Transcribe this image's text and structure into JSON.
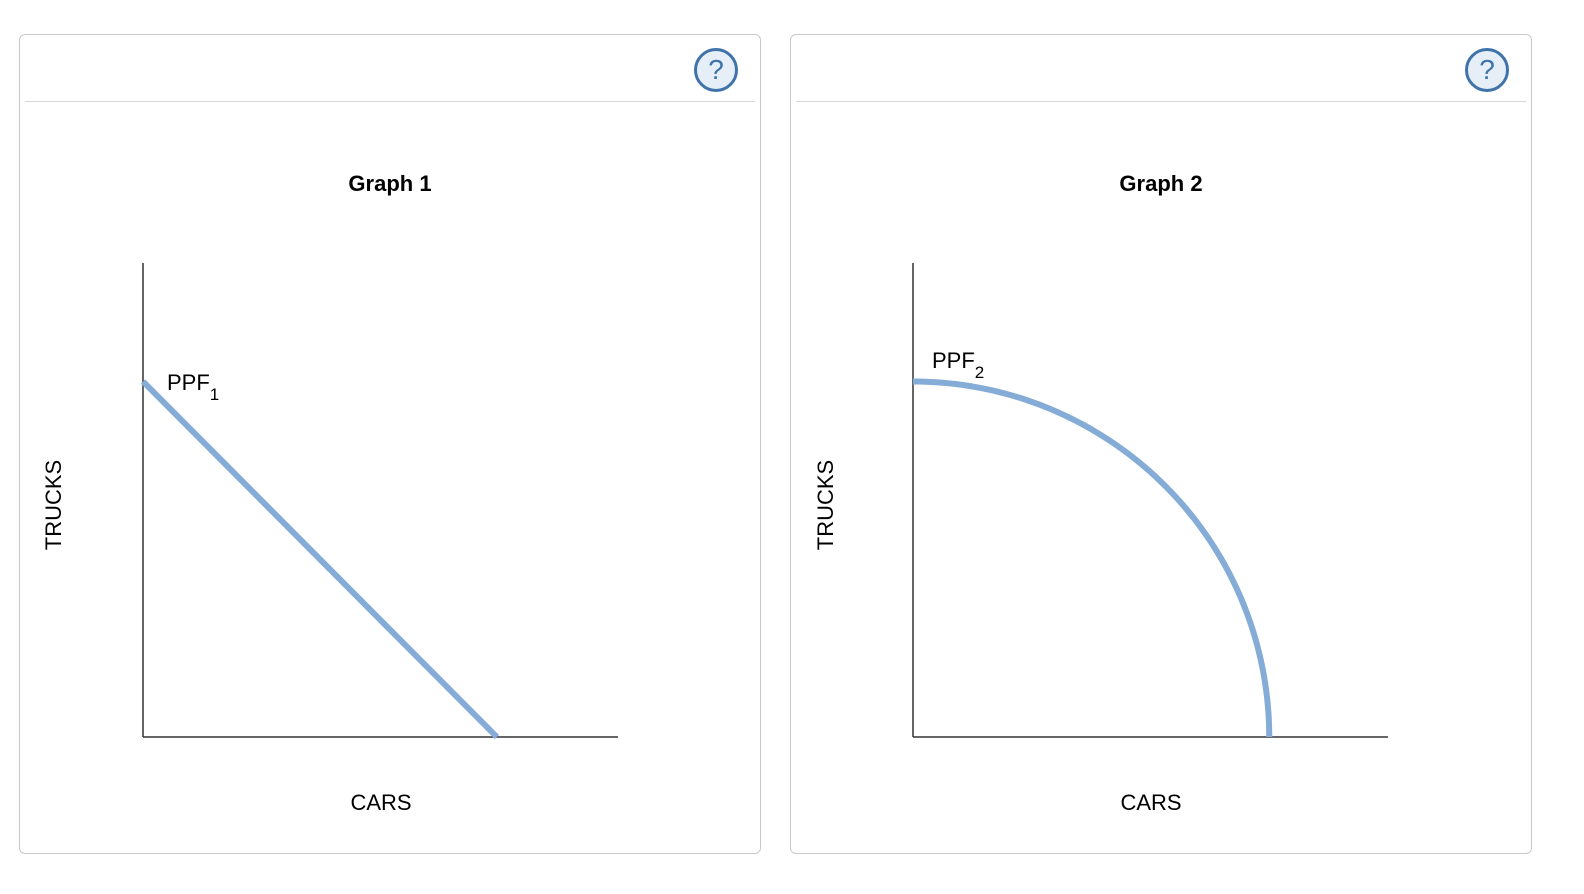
{
  "help_label": "?",
  "chart_data": [
    {
      "type": "line",
      "title": "Graph 1",
      "xlabel": "CARS",
      "ylabel": "TRUCKS",
      "curve_label": "PPF",
      "curve_label_subscript": "1",
      "curve_shape": "straight",
      "curve_color": "#84acd6",
      "x_intercept": 0.745,
      "y_intercept": 0.75,
      "xlim": [
        0,
        1
      ],
      "ylim": [
        0,
        1
      ],
      "grid": false
    },
    {
      "type": "line",
      "title": "Graph 2",
      "xlabel": "CARS",
      "ylabel": "TRUCKS",
      "curve_label": "PPF",
      "curve_label_subscript": "2",
      "curve_shape": "concave",
      "curve_color": "#84acd6",
      "x_intercept": 0.75,
      "y_intercept": 0.75,
      "xlim": [
        0,
        1
      ],
      "ylim": [
        0,
        1
      ],
      "grid": false
    }
  ]
}
